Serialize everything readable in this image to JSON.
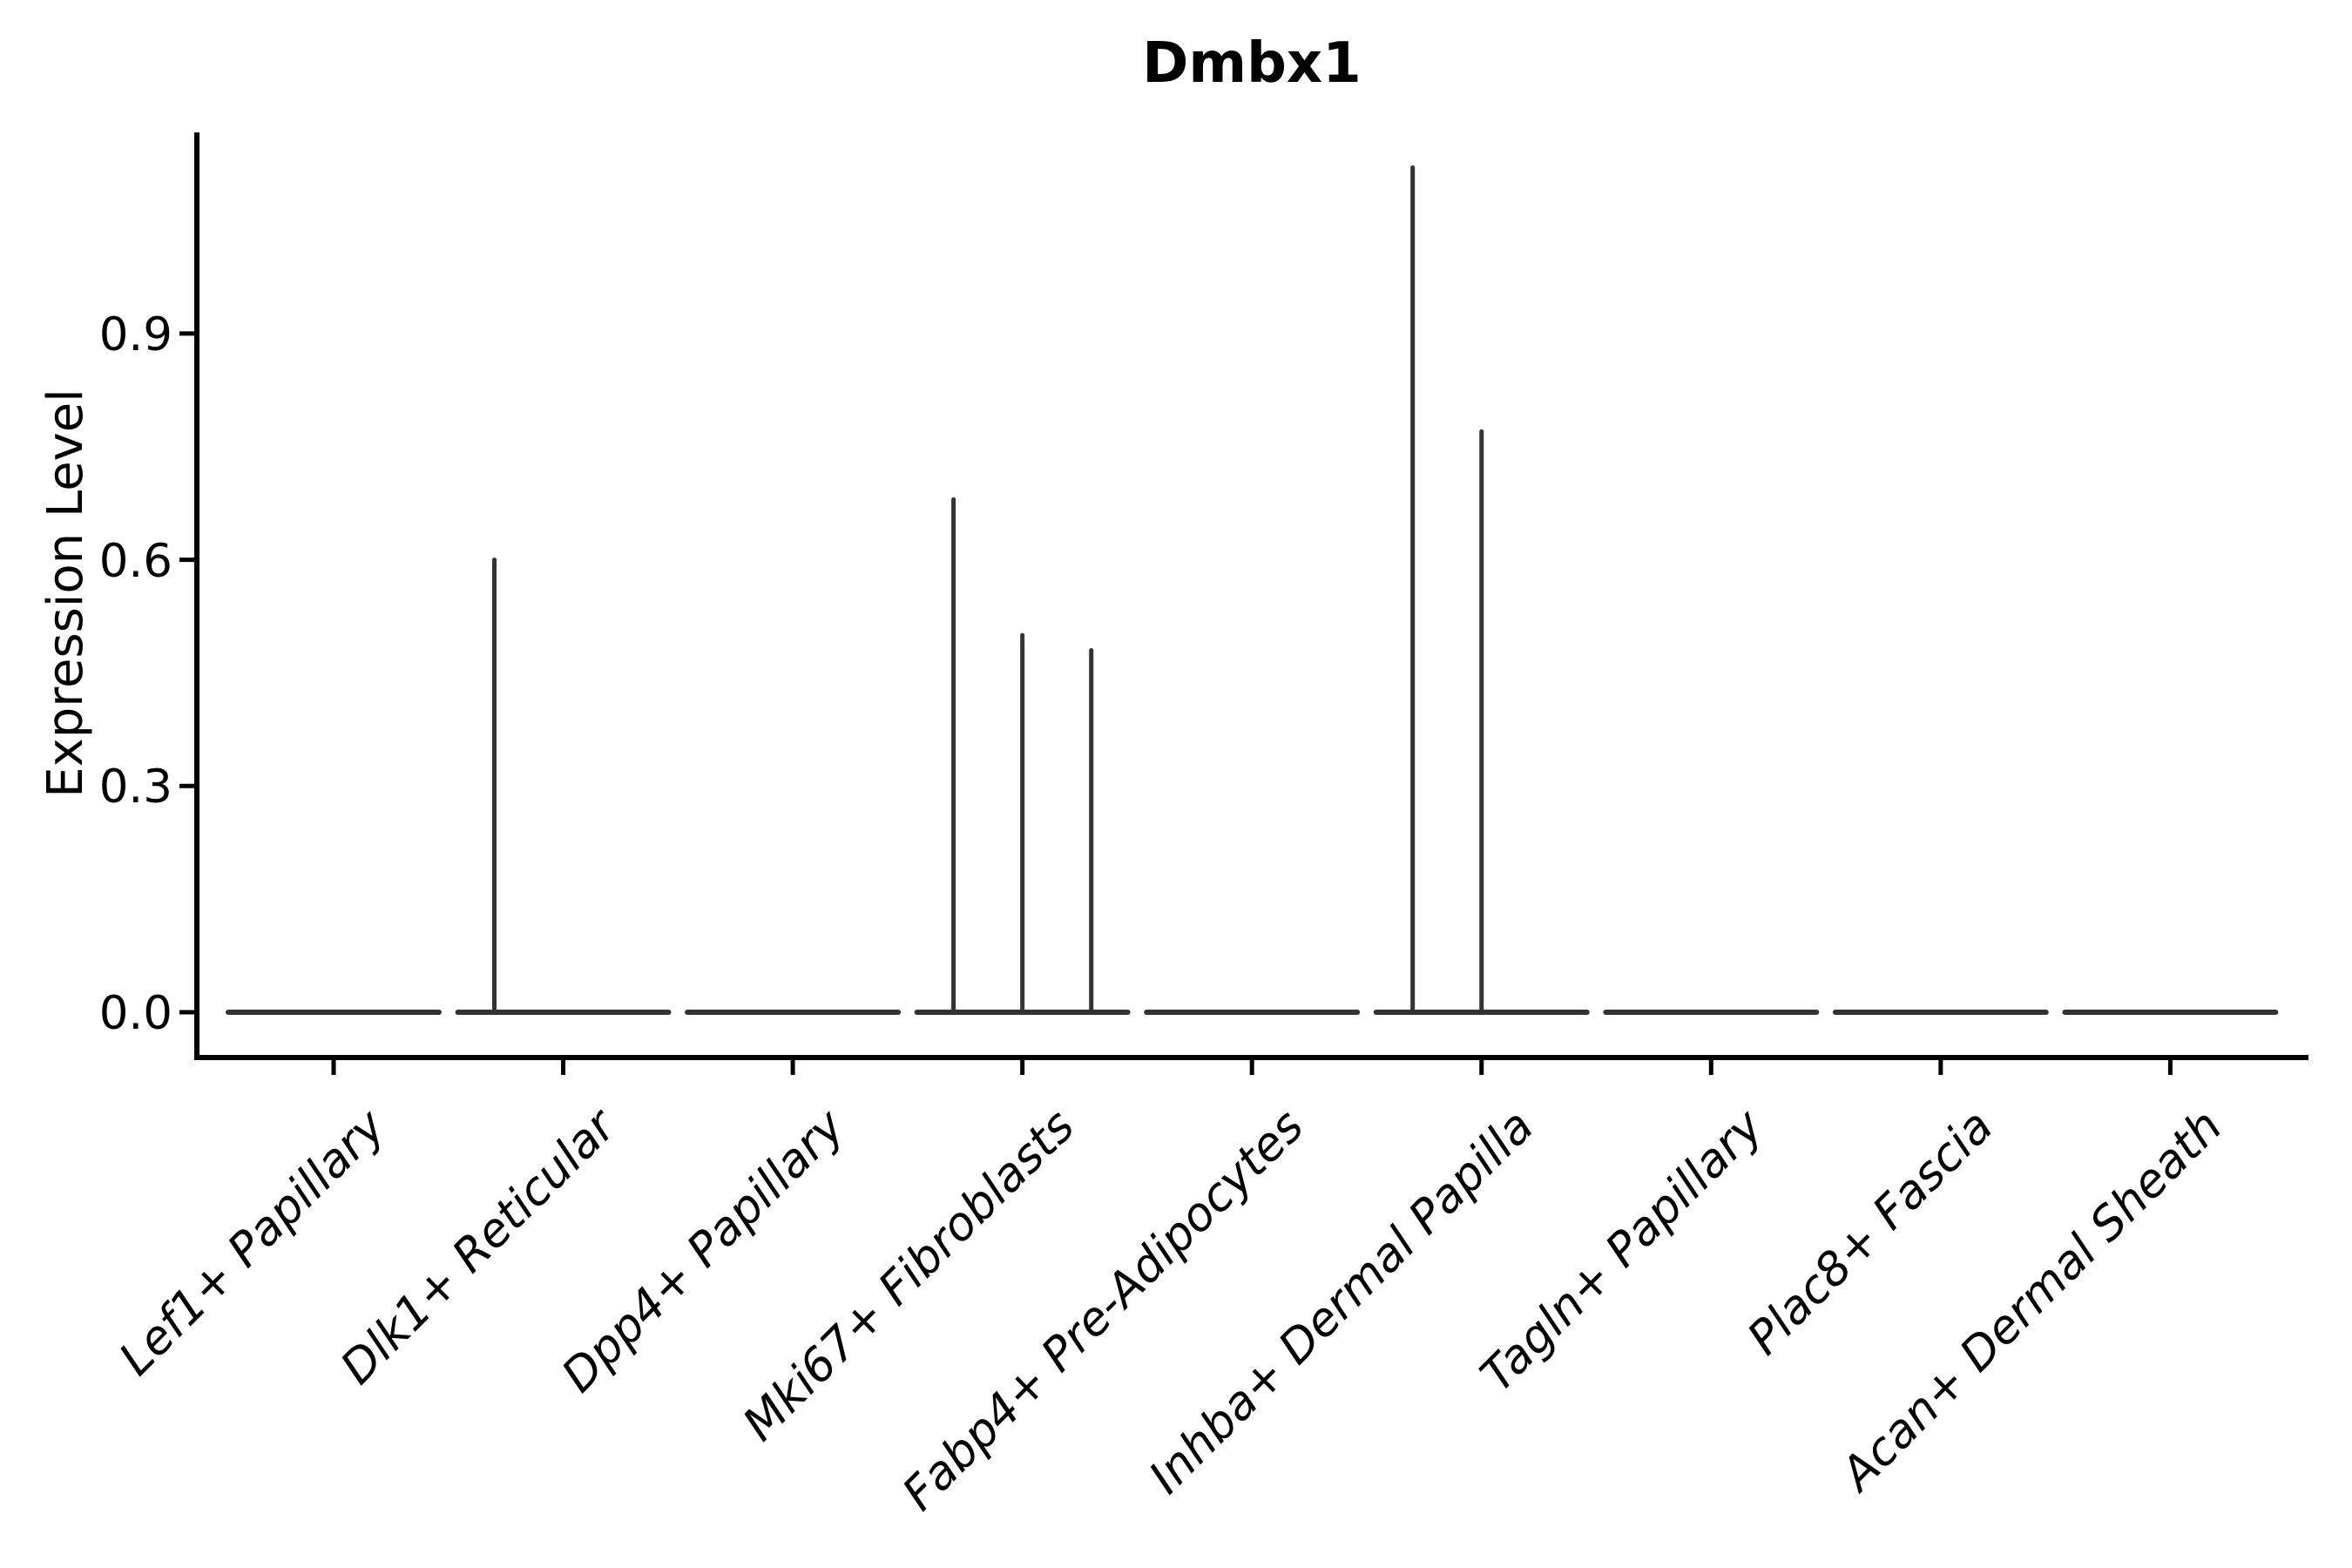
{
  "chart_data": {
    "type": "violin",
    "title": "Dmbx1",
    "ylabel": "Expression Level",
    "xlabel": "",
    "ylim": [
      0,
      1.17
    ],
    "grid": false,
    "legend": "none",
    "ytick_values": [
      0.0,
      0.3,
      0.6,
      0.9
    ],
    "ytick_labels": [
      "0.0",
      "0.3",
      "0.6",
      "0.9"
    ],
    "categories": [
      "Lef1+ Papillary",
      "Dlk1+ Reticular",
      "Dpp4+ Papillary",
      "Mki67+ Fibroblasts",
      "Fabp4+ Pre-Adipocytes",
      "Inhba+ Dermal Papilla",
      "Tagln+ Papillary",
      "Plac8+ Fascia",
      "Acan+ Dermal Sheath"
    ],
    "violins": [
      {
        "category": "Lef1+ Papillary",
        "zero_mass_line": true,
        "spikes": []
      },
      {
        "category": "Dlk1+ Reticular",
        "zero_mass_line": true,
        "spikes": [
          {
            "pos": -0.3,
            "value": 0.6
          }
        ]
      },
      {
        "category": "Dpp4+ Papillary",
        "zero_mass_line": true,
        "spikes": []
      },
      {
        "category": "Mki67+ Fibroblasts",
        "zero_mass_line": true,
        "spikes": [
          {
            "pos": -0.3,
            "value": 0.68
          },
          {
            "pos": 0,
            "value": 0.5
          },
          {
            "pos": 0.3,
            "value": 0.48
          }
        ]
      },
      {
        "category": "Fabp4+ Pre-Adipocytes",
        "zero_mass_line": true,
        "spikes": []
      },
      {
        "category": "Inhba+ Dermal Papilla",
        "zero_mass_line": true,
        "spikes": [
          {
            "pos": -0.3,
            "value": 1.12
          },
          {
            "pos": 0,
            "value": 0.77
          }
        ]
      },
      {
        "category": "Tagln+ Papillary",
        "zero_mass_line": true,
        "spikes": []
      },
      {
        "category": "Plac8+ Fascia",
        "zero_mass_line": true,
        "spikes": []
      },
      {
        "category": "Acan+ Dermal Sheath",
        "zero_mass_line": true,
        "spikes": []
      }
    ],
    "colors": {
      "violin_stroke": "#333333",
      "axis": "#000000",
      "text": "#000000",
      "background": "#ffffff"
    }
  }
}
